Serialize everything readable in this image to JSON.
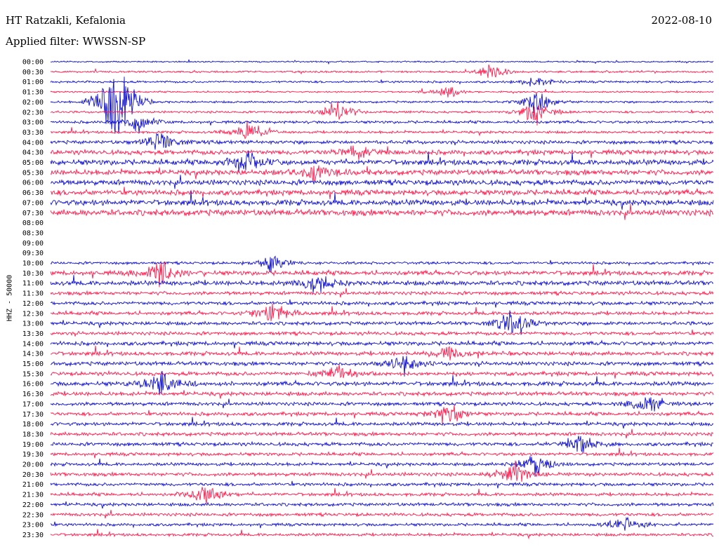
{
  "header": {
    "station": "HT Ratzakli, Kefalonia",
    "date": "2022-08-10",
    "filter": "Applied filter: WWSSN-SP"
  },
  "chart_data": {
    "type": "line",
    "ylabel": "HHZ - 50000",
    "colors": [
      "#1010d0",
      "#ff1a4d"
    ],
    "row_labels": [
      "00:00",
      "00:30",
      "01:00",
      "01:30",
      "02:00",
      "02:30",
      "03:00",
      "03:30",
      "04:00",
      "04:30",
      "05:00",
      "05:30",
      "06:00",
      "06:30",
      "07:00",
      "07:30",
      "08:00",
      "08:30",
      "09:00",
      "09:30",
      "10:00",
      "10:30",
      "11:00",
      "11:30",
      "12:00",
      "12:30",
      "13:00",
      "13:30",
      "14:00",
      "14:30",
      "15:00",
      "15:30",
      "16:00",
      "16:30",
      "17:00",
      "17:30",
      "18:00",
      "18:30",
      "19:00",
      "19:30",
      "20:00",
      "20:30",
      "21:00",
      "21:30",
      "22:00",
      "22:30",
      "23:00",
      "23:30"
    ],
    "row_noise": [
      0.8,
      1.0,
      1.2,
      0.9,
      1.2,
      1.2,
      1.5,
      1.4,
      2.0,
      2.6,
      3.0,
      3.0,
      3.0,
      3.0,
      3.2,
      3.4,
      0,
      0,
      0,
      0,
      1.5,
      2.5,
      2.6,
      2.0,
      2.0,
      2.0,
      2.0,
      2.0,
      2.2,
      2.2,
      2.2,
      2.2,
      2.4,
      2.2,
      2.0,
      2.0,
      2.0,
      2.0,
      2.0,
      1.8,
      1.8,
      2.0,
      1.8,
      1.8,
      1.8,
      1.8,
      1.6,
      1.6
    ],
    "events": [
      {
        "row": 1,
        "minute": 20,
        "amp": 12
      },
      {
        "row": 2,
        "minute": 22,
        "amp": 10
      },
      {
        "row": 3,
        "minute": 18,
        "amp": 8
      },
      {
        "row": 4,
        "minute": 3,
        "amp": 80
      },
      {
        "row": 4,
        "minute": 22,
        "amp": 16
      },
      {
        "row": 5,
        "minute": 13,
        "amp": 18
      },
      {
        "row": 5,
        "minute": 22,
        "amp": 20
      },
      {
        "row": 6,
        "minute": 4,
        "amp": 14
      },
      {
        "row": 7,
        "minute": 9,
        "amp": 16
      },
      {
        "row": 8,
        "minute": 5,
        "amp": 14
      },
      {
        "row": 9,
        "minute": 14,
        "amp": 12
      },
      {
        "row": 10,
        "minute": 9,
        "amp": 14
      },
      {
        "row": 11,
        "minute": 12,
        "amp": 12
      },
      {
        "row": 20,
        "minute": 10,
        "amp": 10
      },
      {
        "row": 21,
        "minute": 5,
        "amp": 18
      },
      {
        "row": 22,
        "minute": 12,
        "amp": 14
      },
      {
        "row": 25,
        "minute": 10,
        "amp": 18
      },
      {
        "row": 26,
        "minute": 21,
        "amp": 22
      },
      {
        "row": 29,
        "minute": 18,
        "amp": 12
      },
      {
        "row": 30,
        "minute": 16,
        "amp": 16
      },
      {
        "row": 31,
        "minute": 13,
        "amp": 14
      },
      {
        "row": 32,
        "minute": 5,
        "amp": 18
      },
      {
        "row": 34,
        "minute": 27,
        "amp": 16
      },
      {
        "row": 35,
        "minute": 18,
        "amp": 16
      },
      {
        "row": 38,
        "minute": 24,
        "amp": 14
      },
      {
        "row": 40,
        "minute": 22,
        "amp": 16
      },
      {
        "row": 41,
        "minute": 21,
        "amp": 18
      },
      {
        "row": 43,
        "minute": 7,
        "amp": 16
      },
      {
        "row": 46,
        "minute": 26,
        "amp": 14
      }
    ]
  }
}
